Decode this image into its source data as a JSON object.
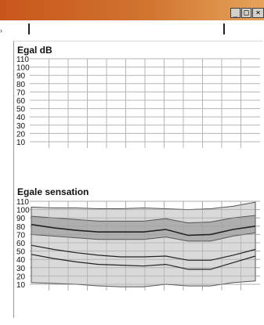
{
  "window": {
    "buttons": {
      "minimize": "_",
      "maximize": "□",
      "close": "×"
    }
  },
  "chart_data": [
    {
      "type": "line",
      "title": "Egal dB",
      "y_ticks": [
        "110",
        "100",
        "90",
        "80",
        "70",
        "60",
        "50",
        "40",
        "30",
        "20",
        "10"
      ],
      "ylim": [
        10,
        110
      ],
      "x_count": 11,
      "grid": true,
      "series": []
    },
    {
      "type": "area",
      "title": "Egale sensation",
      "y_ticks": [
        "110",
        "100",
        "90",
        "80",
        "70",
        "60",
        "50",
        "40",
        "30",
        "20",
        "10"
      ],
      "ylim": [
        10,
        110
      ],
      "x_count": 11,
      "grid": true,
      "x": [
        0,
        1,
        2,
        3,
        4,
        5,
        6,
        7,
        8,
        9,
        10
      ],
      "bands": [
        {
          "lower": [
            12,
            11,
            10,
            8,
            7,
            7,
            10,
            8,
            8,
            12,
            14
          ],
          "upper": [
            103,
            102,
            102,
            101,
            101,
            102,
            101,
            100,
            101,
            104,
            109
          ]
        },
        {
          "lower": [
            70,
            68,
            66,
            64,
            64,
            64,
            67,
            62,
            62,
            68,
            72
          ],
          "upper": [
            92,
            90,
            88,
            86,
            86,
            86,
            89,
            84,
            85,
            90,
            93
          ]
        }
      ],
      "series": [
        {
          "values": [
            82,
            78,
            75,
            73,
            73,
            73,
            76,
            69,
            70,
            76,
            80
          ]
        },
        {
          "values": [
            57,
            52,
            48,
            45,
            43,
            43,
            44,
            39,
            39,
            45,
            52
          ]
        },
        {
          "values": [
            46,
            41,
            37,
            34,
            33,
            32,
            34,
            28,
            28,
            36,
            44
          ]
        }
      ]
    }
  ]
}
